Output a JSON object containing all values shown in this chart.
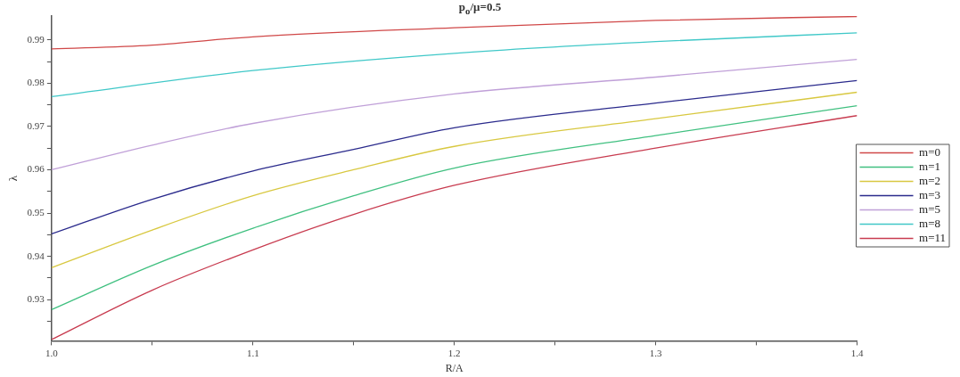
{
  "chart_data": {
    "type": "line",
    "title": "p$_{o}$/μ=0.5",
    "xlabel": "R/A",
    "ylabel": "λ",
    "xlim": [
      1.0,
      1.4
    ],
    "xticks": [
      {
        "value": 1.0,
        "label": "1.0"
      },
      {
        "value": 1.05,
        "label": null
      },
      1.1,
      {
        "value": 1.15,
        "label": null
      },
      1.2,
      {
        "value": 1.25,
        "label": null
      },
      1.3,
      {
        "value": 1.35,
        "label": null
      },
      1.4
    ],
    "ylim": [
      0.9205,
      0.9955
    ],
    "yticks": [
      {
        "value": 0.925,
        "label": null
      },
      0.93,
      {
        "value": 0.935,
        "label": null
      },
      0.94,
      {
        "value": 0.945,
        "label": null
      },
      0.95,
      {
        "value": 0.955,
        "label": null
      },
      0.96,
      {
        "value": 0.965,
        "label": null
      },
      0.97,
      {
        "value": 0.975,
        "label": null
      },
      0.98,
      {
        "value": 0.985,
        "label": null
      },
      0.99
    ],
    "grid": false,
    "legend": "right",
    "marker": "none",
    "line_style": "solid",
    "series": [
      {
        "name": "m=0",
        "color": "#d04848",
        "x": [
          1.0,
          1.05,
          1.1,
          1.2,
          1.3,
          1.4
        ],
        "values": [
          0.9879,
          0.9888,
          0.9907,
          0.9928,
          0.9945,
          0.9954
        ]
      },
      {
        "name": "m=1",
        "color": "#40c080",
        "x": [
          1.0,
          1.05,
          1.1,
          1.15,
          1.2,
          1.3,
          1.4
        ],
        "values": [
          0.9277,
          0.9379,
          0.9465,
          0.954,
          0.9604,
          0.9679,
          0.9748
        ]
      },
      {
        "name": "m=2",
        "color": "#d8c840",
        "x": [
          1.0,
          1.05,
          1.1,
          1.15,
          1.2,
          1.3,
          1.4
        ],
        "values": [
          0.9374,
          0.9461,
          0.954,
          0.96,
          0.9654,
          0.9718,
          0.9779
        ]
      },
      {
        "name": "m=3",
        "color": "#2a2a8c",
        "x": [
          1.0,
          1.05,
          1.1,
          1.15,
          1.2,
          1.3,
          1.4
        ],
        "values": [
          0.9452,
          0.9532,
          0.9597,
          0.9647,
          0.9697,
          0.9754,
          0.9806
        ]
      },
      {
        "name": "m=5",
        "color": "#c0a0d8",
        "x": [
          1.0,
          1.05,
          1.1,
          1.2,
          1.3,
          1.4
        ],
        "values": [
          0.96,
          0.9657,
          0.9707,
          0.9775,
          0.9814,
          0.9855
        ]
      },
      {
        "name": "m=8",
        "color": "#40c8c8",
        "x": [
          1.0,
          1.1,
          1.2,
          1.3,
          1.4
        ],
        "values": [
          0.9769,
          0.9829,
          0.9869,
          0.9896,
          0.9916
        ]
      },
      {
        "name": "m=11",
        "color": "#c83c50",
        "x": [
          1.0,
          1.05,
          1.1,
          1.15,
          1.2,
          1.3,
          1.4
        ],
        "values": [
          0.9208,
          0.9322,
          0.9415,
          0.9497,
          0.9564,
          0.965,
          0.9725
        ]
      }
    ]
  }
}
